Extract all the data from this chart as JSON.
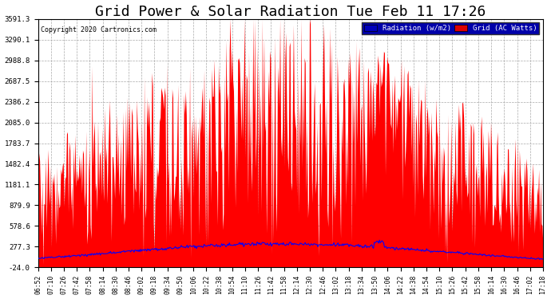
{
  "title": "Grid Power & Solar Radiation Tue Feb 11 17:26",
  "copyright": "Copyright 2020 Cartronics.com",
  "legend_labels": [
    "Radiation (w/m2)",
    "Grid (AC Watts)"
  ],
  "yticks": [
    -24.0,
    277.3,
    578.6,
    879.9,
    1181.1,
    1482.4,
    1783.7,
    2085.0,
    2386.2,
    2687.5,
    2988.8,
    3290.1,
    3591.3
  ],
  "ymin": -24.0,
  "ymax": 3591.3,
  "background_color": "#ffffff",
  "plot_bg_color": "#ffffff",
  "grid_color": "#aaaaaa",
  "title_fontsize": 13,
  "xtick_labels": [
    "06:52",
    "07:10",
    "07:26",
    "07:42",
    "07:58",
    "08:14",
    "08:30",
    "08:46",
    "09:02",
    "09:18",
    "09:34",
    "09:50",
    "10:06",
    "10:22",
    "10:38",
    "10:54",
    "11:10",
    "11:26",
    "11:42",
    "11:58",
    "12:14",
    "12:30",
    "12:46",
    "13:02",
    "13:18",
    "13:34",
    "13:50",
    "14:06",
    "14:22",
    "14:38",
    "14:54",
    "15:10",
    "15:26",
    "15:42",
    "15:58",
    "16:14",
    "16:30",
    "16:46",
    "17:02",
    "17:18"
  ],
  "num_points": 600,
  "red_fill_color": "#ff0000",
  "blue_line_color": "#0000ff"
}
